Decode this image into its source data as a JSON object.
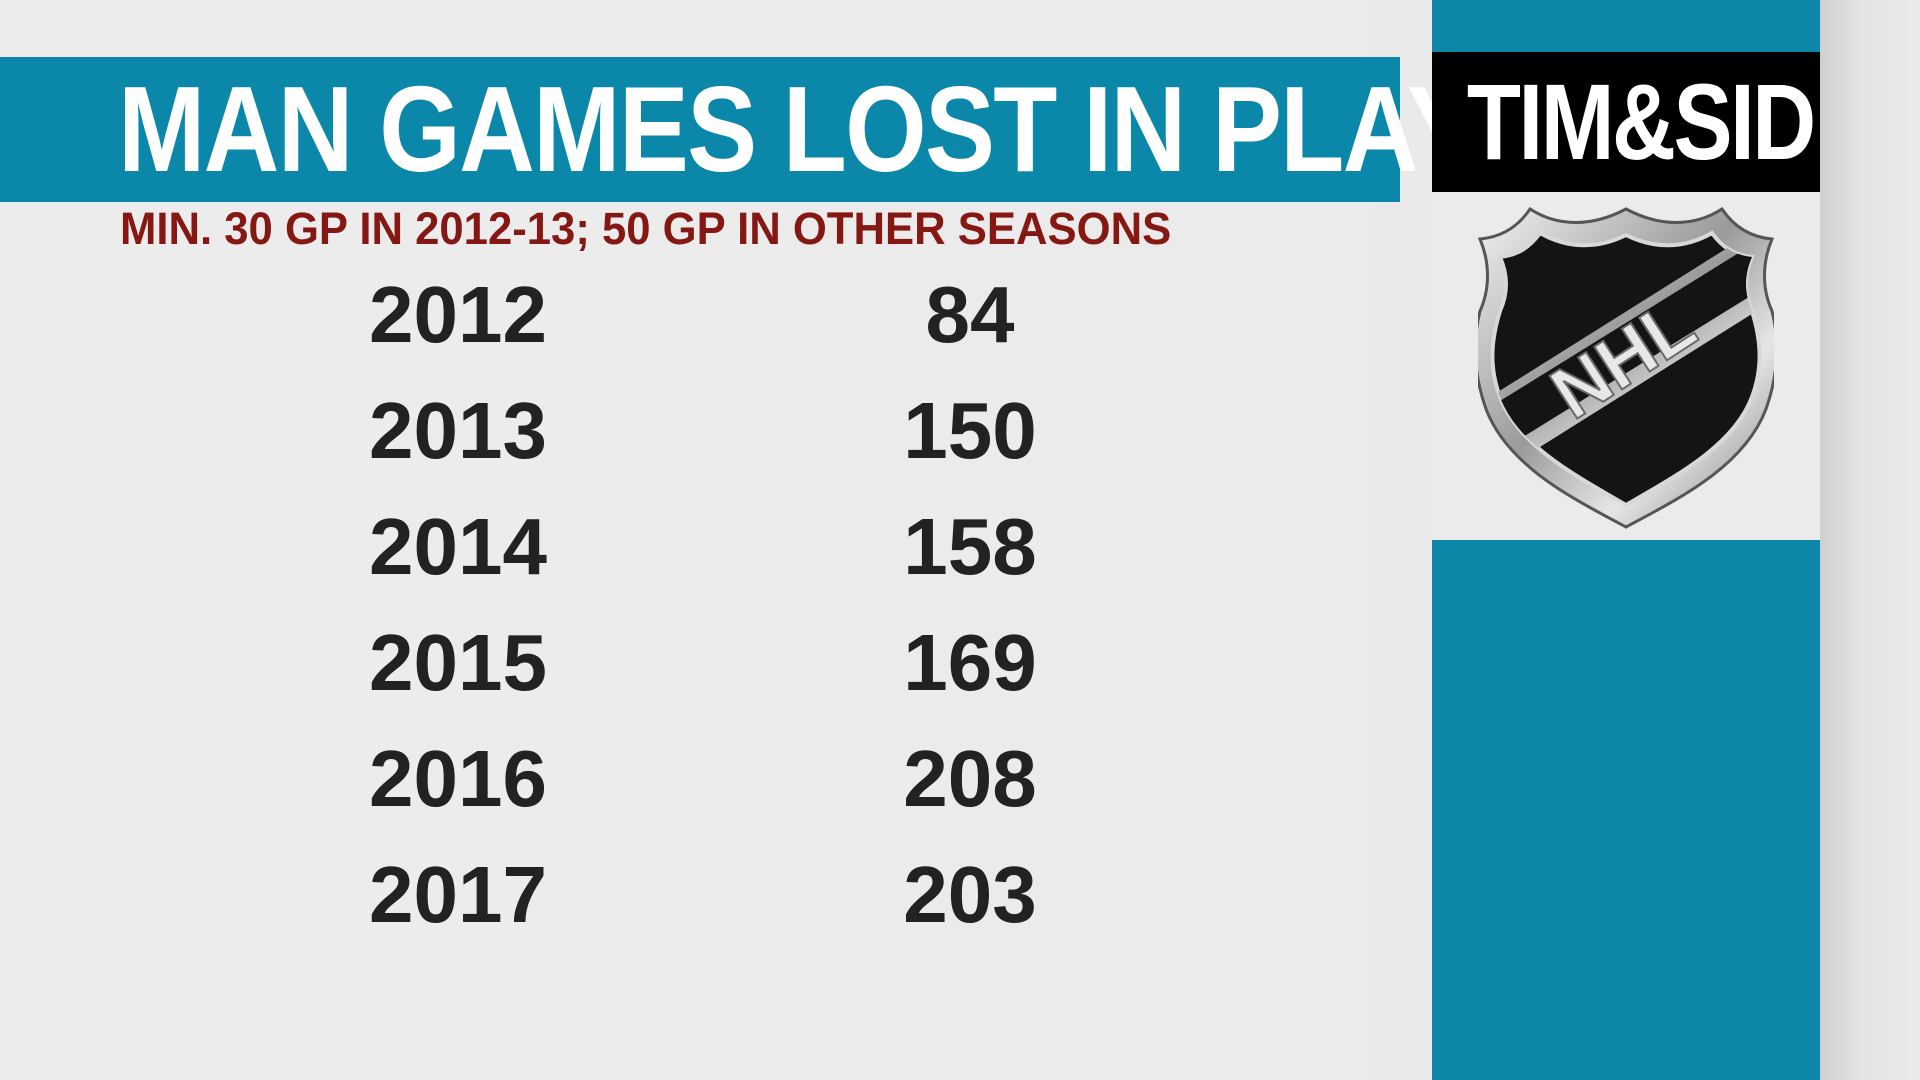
{
  "title": "MAN GAMES LOST IN PLAYOFFS",
  "subtitle": "MIN. 30 GP IN 2012-13; 50 GP IN OTHER SEASONS",
  "rows": [
    {
      "year": "2012",
      "value": "84"
    },
    {
      "year": "2013",
      "value": "150"
    },
    {
      "year": "2014",
      "value": "158"
    },
    {
      "year": "2015",
      "value": "169"
    },
    {
      "year": "2016",
      "value": "208"
    },
    {
      "year": "2017",
      "value": "203"
    }
  ],
  "brand": {
    "text": "TIM&SID"
  },
  "logo": {
    "text": "NHL",
    "icon": "nhl-shield-logo"
  },
  "colors": {
    "accent_teal": "#0b88a9",
    "subtitle_red": "#861814",
    "text_dark": "#222222",
    "background": "#ebebeb"
  }
}
